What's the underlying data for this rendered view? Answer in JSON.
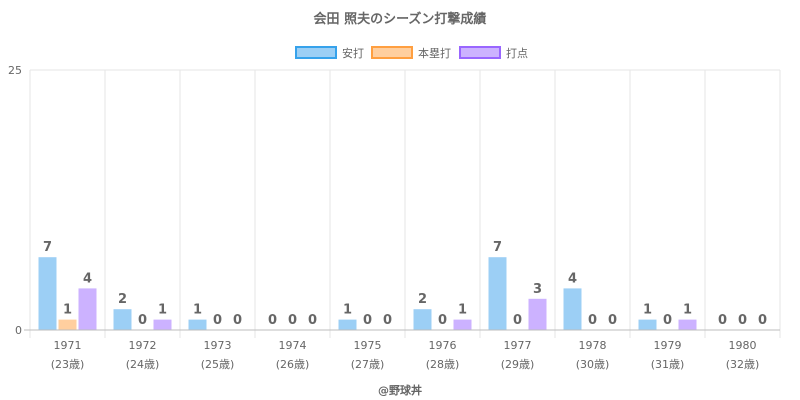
{
  "chart_data": {
    "type": "bar",
    "title": "会田 照夫のシーズン打撃成績",
    "categories": [
      "1971",
      "1972",
      "1973",
      "1974",
      "1975",
      "1976",
      "1977",
      "1978",
      "1979",
      "1980"
    ],
    "category_sublabels": [
      "(23歳)",
      "(24歳)",
      "(25歳)",
      "(26歳)",
      "(27歳)",
      "(28歳)",
      "(29歳)",
      "(30歳)",
      "(31歳)",
      "(32歳)"
    ],
    "series": [
      {
        "name": "安打",
        "values": [
          7,
          2,
          1,
          0,
          1,
          2,
          7,
          4,
          1,
          0
        ],
        "color": "#9ccff5",
        "border": "#36a2eb"
      },
      {
        "name": "本塁打",
        "values": [
          1,
          0,
          0,
          0,
          0,
          0,
          0,
          0,
          0,
          0
        ],
        "color": "#ffcf9f",
        "border": "#ff9f40"
      },
      {
        "name": "打点",
        "values": [
          4,
          1,
          0,
          0,
          0,
          1,
          3,
          0,
          1,
          0
        ],
        "color": "#ccb2ff",
        "border": "#9966ff"
      }
    ],
    "ylim": [
      0,
      25
    ],
    "y_ticks": [
      "0",
      "25"
    ],
    "legend_position": "top",
    "grid": true,
    "footer": "@野球丼"
  }
}
